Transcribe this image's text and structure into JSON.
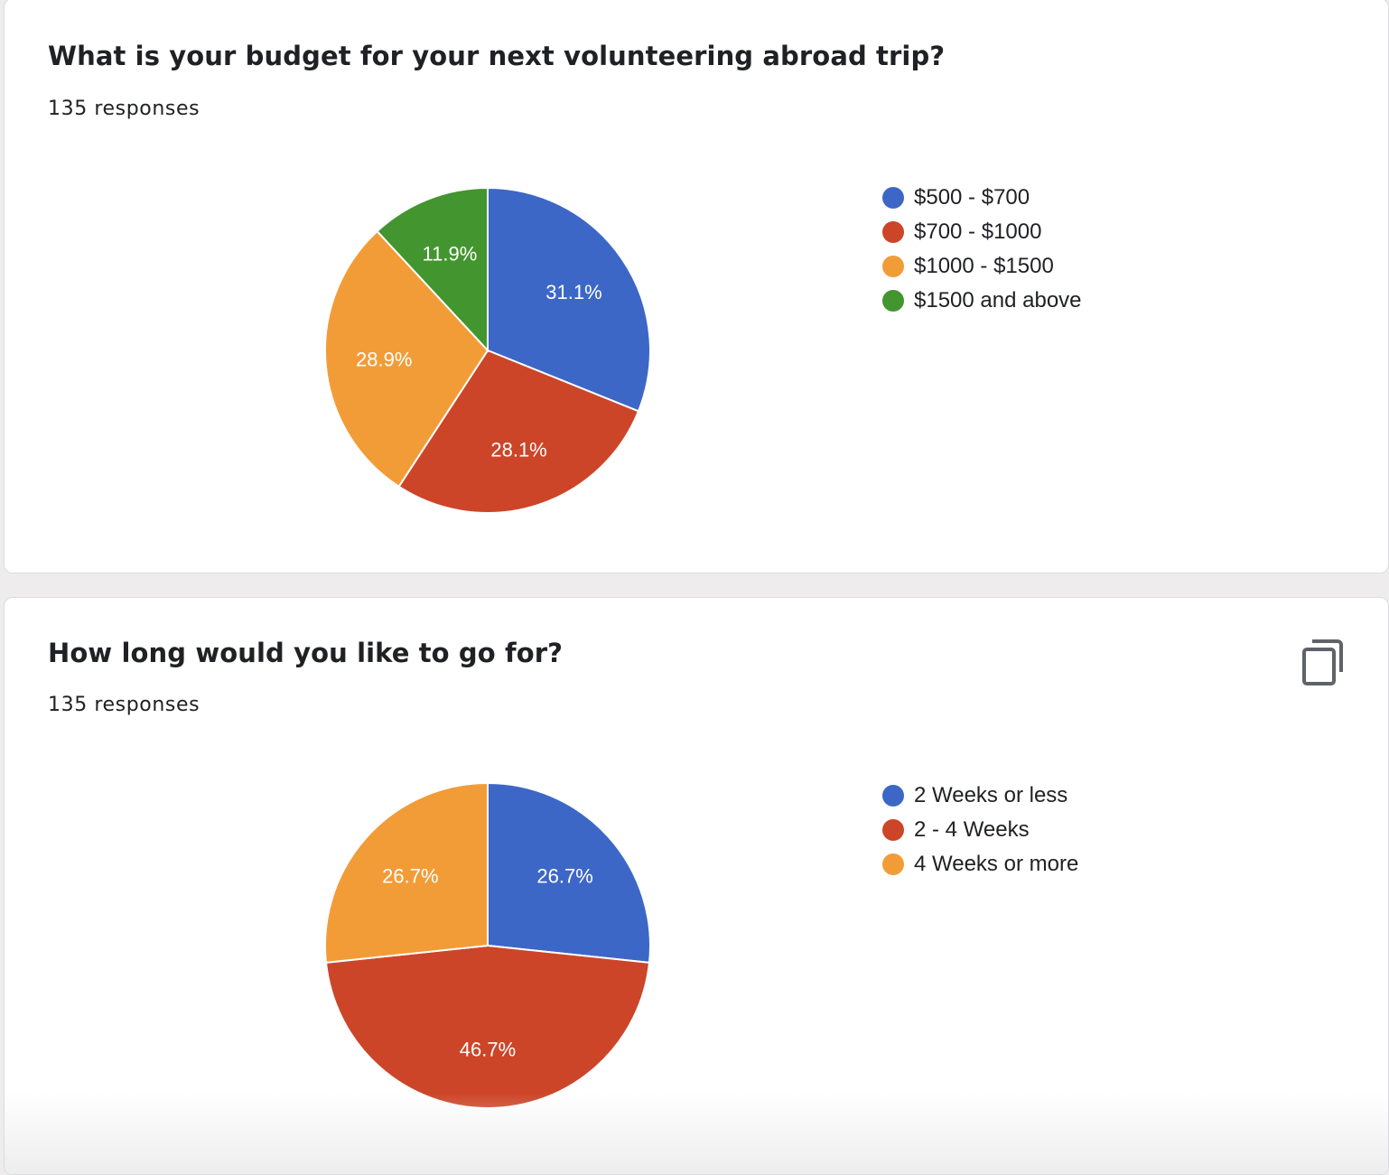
{
  "questions": [
    {
      "title": "What is your budget for your next volunteering abroad trip?",
      "responses": "135 responses"
    },
    {
      "title": "How long would you like to go for?",
      "responses": "135 responses"
    }
  ],
  "copy_icon": "copy-icon",
  "chart_data": [
    {
      "type": "pie",
      "title": "",
      "start_angle_deg": 90,
      "direction": "clockwise",
      "legend_position": "right",
      "slices": [
        {
          "label": "$500 - $700",
          "value": 31.1,
          "display": "31.1%",
          "color": "#3d67c7"
        },
        {
          "label": "$700 - $1000",
          "value": 28.1,
          "display": "28.1%",
          "color": "#cc4528"
        },
        {
          "label": "$1000 - $1500",
          "value": 28.9,
          "display": "28.9%",
          "color": "#f29c38"
        },
        {
          "label": "$1500 and above",
          "value": 11.9,
          "display": "11.9%",
          "color": "#43952f"
        }
      ]
    },
    {
      "type": "pie",
      "title": "",
      "start_angle_deg": 90,
      "direction": "clockwise",
      "legend_position": "right",
      "slices": [
        {
          "label": "2 Weeks or less",
          "value": 26.7,
          "display": "26.7%",
          "color": "#3d67c7"
        },
        {
          "label": "2 - 4 Weeks",
          "value": 46.7,
          "display": "46.7%",
          "color": "#cc4528"
        },
        {
          "label": "4 Weeks or more",
          "value": 26.7,
          "display": "26.7%",
          "color": "#f29c38"
        }
      ]
    }
  ]
}
